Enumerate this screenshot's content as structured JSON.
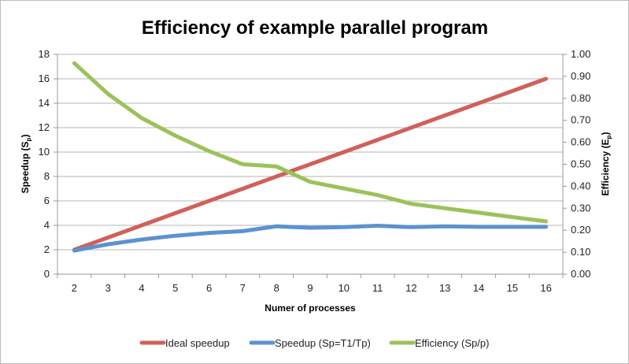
{
  "chart_data": {
    "type": "line",
    "title": "Efficiency of example parallel program",
    "xlabel": "Numer of processes",
    "ylabel": {
      "text": "Speedup (S",
      "sub": "p",
      "close": ")"
    },
    "y2label": {
      "text": "Efficiency (E",
      "sub": "p",
      "close": ")"
    },
    "categories": [
      2,
      3,
      4,
      5,
      6,
      7,
      8,
      9,
      10,
      11,
      12,
      13,
      14,
      15,
      16
    ],
    "ylim": [
      0,
      18
    ],
    "yticks": [
      "0",
      "2",
      "4",
      "6",
      "8",
      "10",
      "12",
      "14",
      "16",
      "18"
    ],
    "y2lim": [
      0,
      1
    ],
    "y2ticks": [
      "0.00",
      "0.10",
      "0.20",
      "0.30",
      "0.40",
      "0.50",
      "0.60",
      "0.70",
      "0.80",
      "0.90",
      "1.00"
    ],
    "grid": true,
    "legend_position": "bottom",
    "series": [
      {
        "name": "Ideal speedup",
        "axis": "left",
        "color": "#d0605a",
        "values": [
          2,
          3,
          4,
          5,
          6,
          7,
          8,
          9,
          10,
          11,
          12,
          13,
          14,
          15,
          16
        ]
      },
      {
        "name": "Speedup (Sp=T1/Tp)",
        "axis": "left",
        "color": "#5b93cf",
        "values": [
          1.93,
          2.45,
          2.84,
          3.15,
          3.38,
          3.52,
          3.92,
          3.8,
          3.85,
          3.97,
          3.85,
          3.92,
          3.88,
          3.88,
          3.88
        ]
      },
      {
        "name": "Efficiency (Sp/p)",
        "axis": "right",
        "color": "#9dc15b",
        "values": [
          0.96,
          0.82,
          0.71,
          0.63,
          0.56,
          0.5,
          0.49,
          0.42,
          0.39,
          0.36,
          0.32,
          0.3,
          0.28,
          0.26,
          0.24
        ]
      }
    ]
  }
}
